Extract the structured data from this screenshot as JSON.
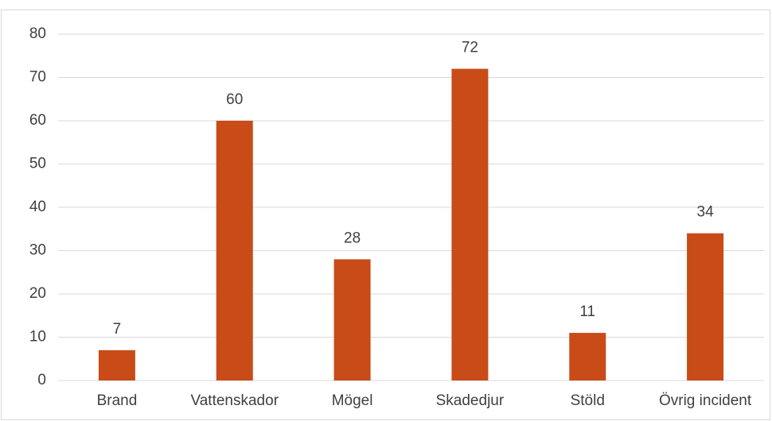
{
  "chart_data": {
    "type": "bar",
    "categories": [
      "Brand",
      "Vattenskador",
      "Mögel",
      "Skadedjur",
      "Stöld",
      "Övrig incident"
    ],
    "values": [
      7,
      60,
      28,
      72,
      11,
      34
    ],
    "color": "#c84b18",
    "ylim": [
      0,
      80
    ],
    "yticks": [
      0,
      10,
      20,
      30,
      40,
      50,
      60,
      70,
      80
    ],
    "grid": true
  }
}
